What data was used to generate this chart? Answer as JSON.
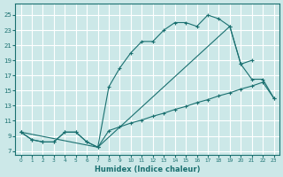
{
  "xlabel": "Humidex (Indice chaleur)",
  "bg_color": "#cce8e8",
  "grid_color": "#ffffff",
  "line_color": "#1a7070",
  "xlim": [
    -0.5,
    23.5
  ],
  "ylim": [
    6.5,
    26.5
  ],
  "xticks": [
    0,
    1,
    2,
    3,
    4,
    5,
    6,
    7,
    8,
    9,
    10,
    11,
    12,
    13,
    14,
    15,
    16,
    17,
    18,
    19,
    20,
    21,
    22,
    23
  ],
  "yticks": [
    7,
    9,
    11,
    13,
    15,
    17,
    19,
    21,
    23,
    25
  ],
  "line1_x": [
    0,
    1,
    2,
    3,
    4,
    5,
    6,
    7,
    8,
    9,
    10,
    11,
    12,
    13,
    14,
    15,
    16,
    17,
    18,
    19,
    20,
    21,
    22,
    23
  ],
  "line1_y": [
    9.5,
    8.5,
    8.2,
    8.2,
    9.5,
    9.5,
    8.2,
    7.5,
    9.7,
    10.2,
    10.7,
    11.1,
    11.6,
    12.0,
    12.5,
    12.9,
    13.4,
    13.8,
    14.3,
    14.7,
    15.2,
    15.6,
    16.1,
    14.0
  ],
  "line2_x": [
    0,
    1,
    2,
    3,
    4,
    5,
    6,
    7,
    8,
    9,
    10,
    11,
    12,
    13,
    14,
    15,
    16,
    17,
    18,
    19,
    20,
    21
  ],
  "line2_y": [
    9.5,
    8.5,
    8.2,
    8.2,
    9.5,
    9.5,
    8.2,
    7.5,
    15.5,
    18.0,
    20.0,
    21.5,
    21.5,
    23.0,
    24.0,
    24.0,
    23.5,
    25.0,
    24.5,
    23.5,
    18.5,
    19.0
  ],
  "line3_x": [
    0,
    7,
    19,
    20,
    21,
    22,
    23
  ],
  "line3_y": [
    9.5,
    7.5,
    23.5,
    18.5,
    16.5,
    16.5,
    14.0
  ]
}
